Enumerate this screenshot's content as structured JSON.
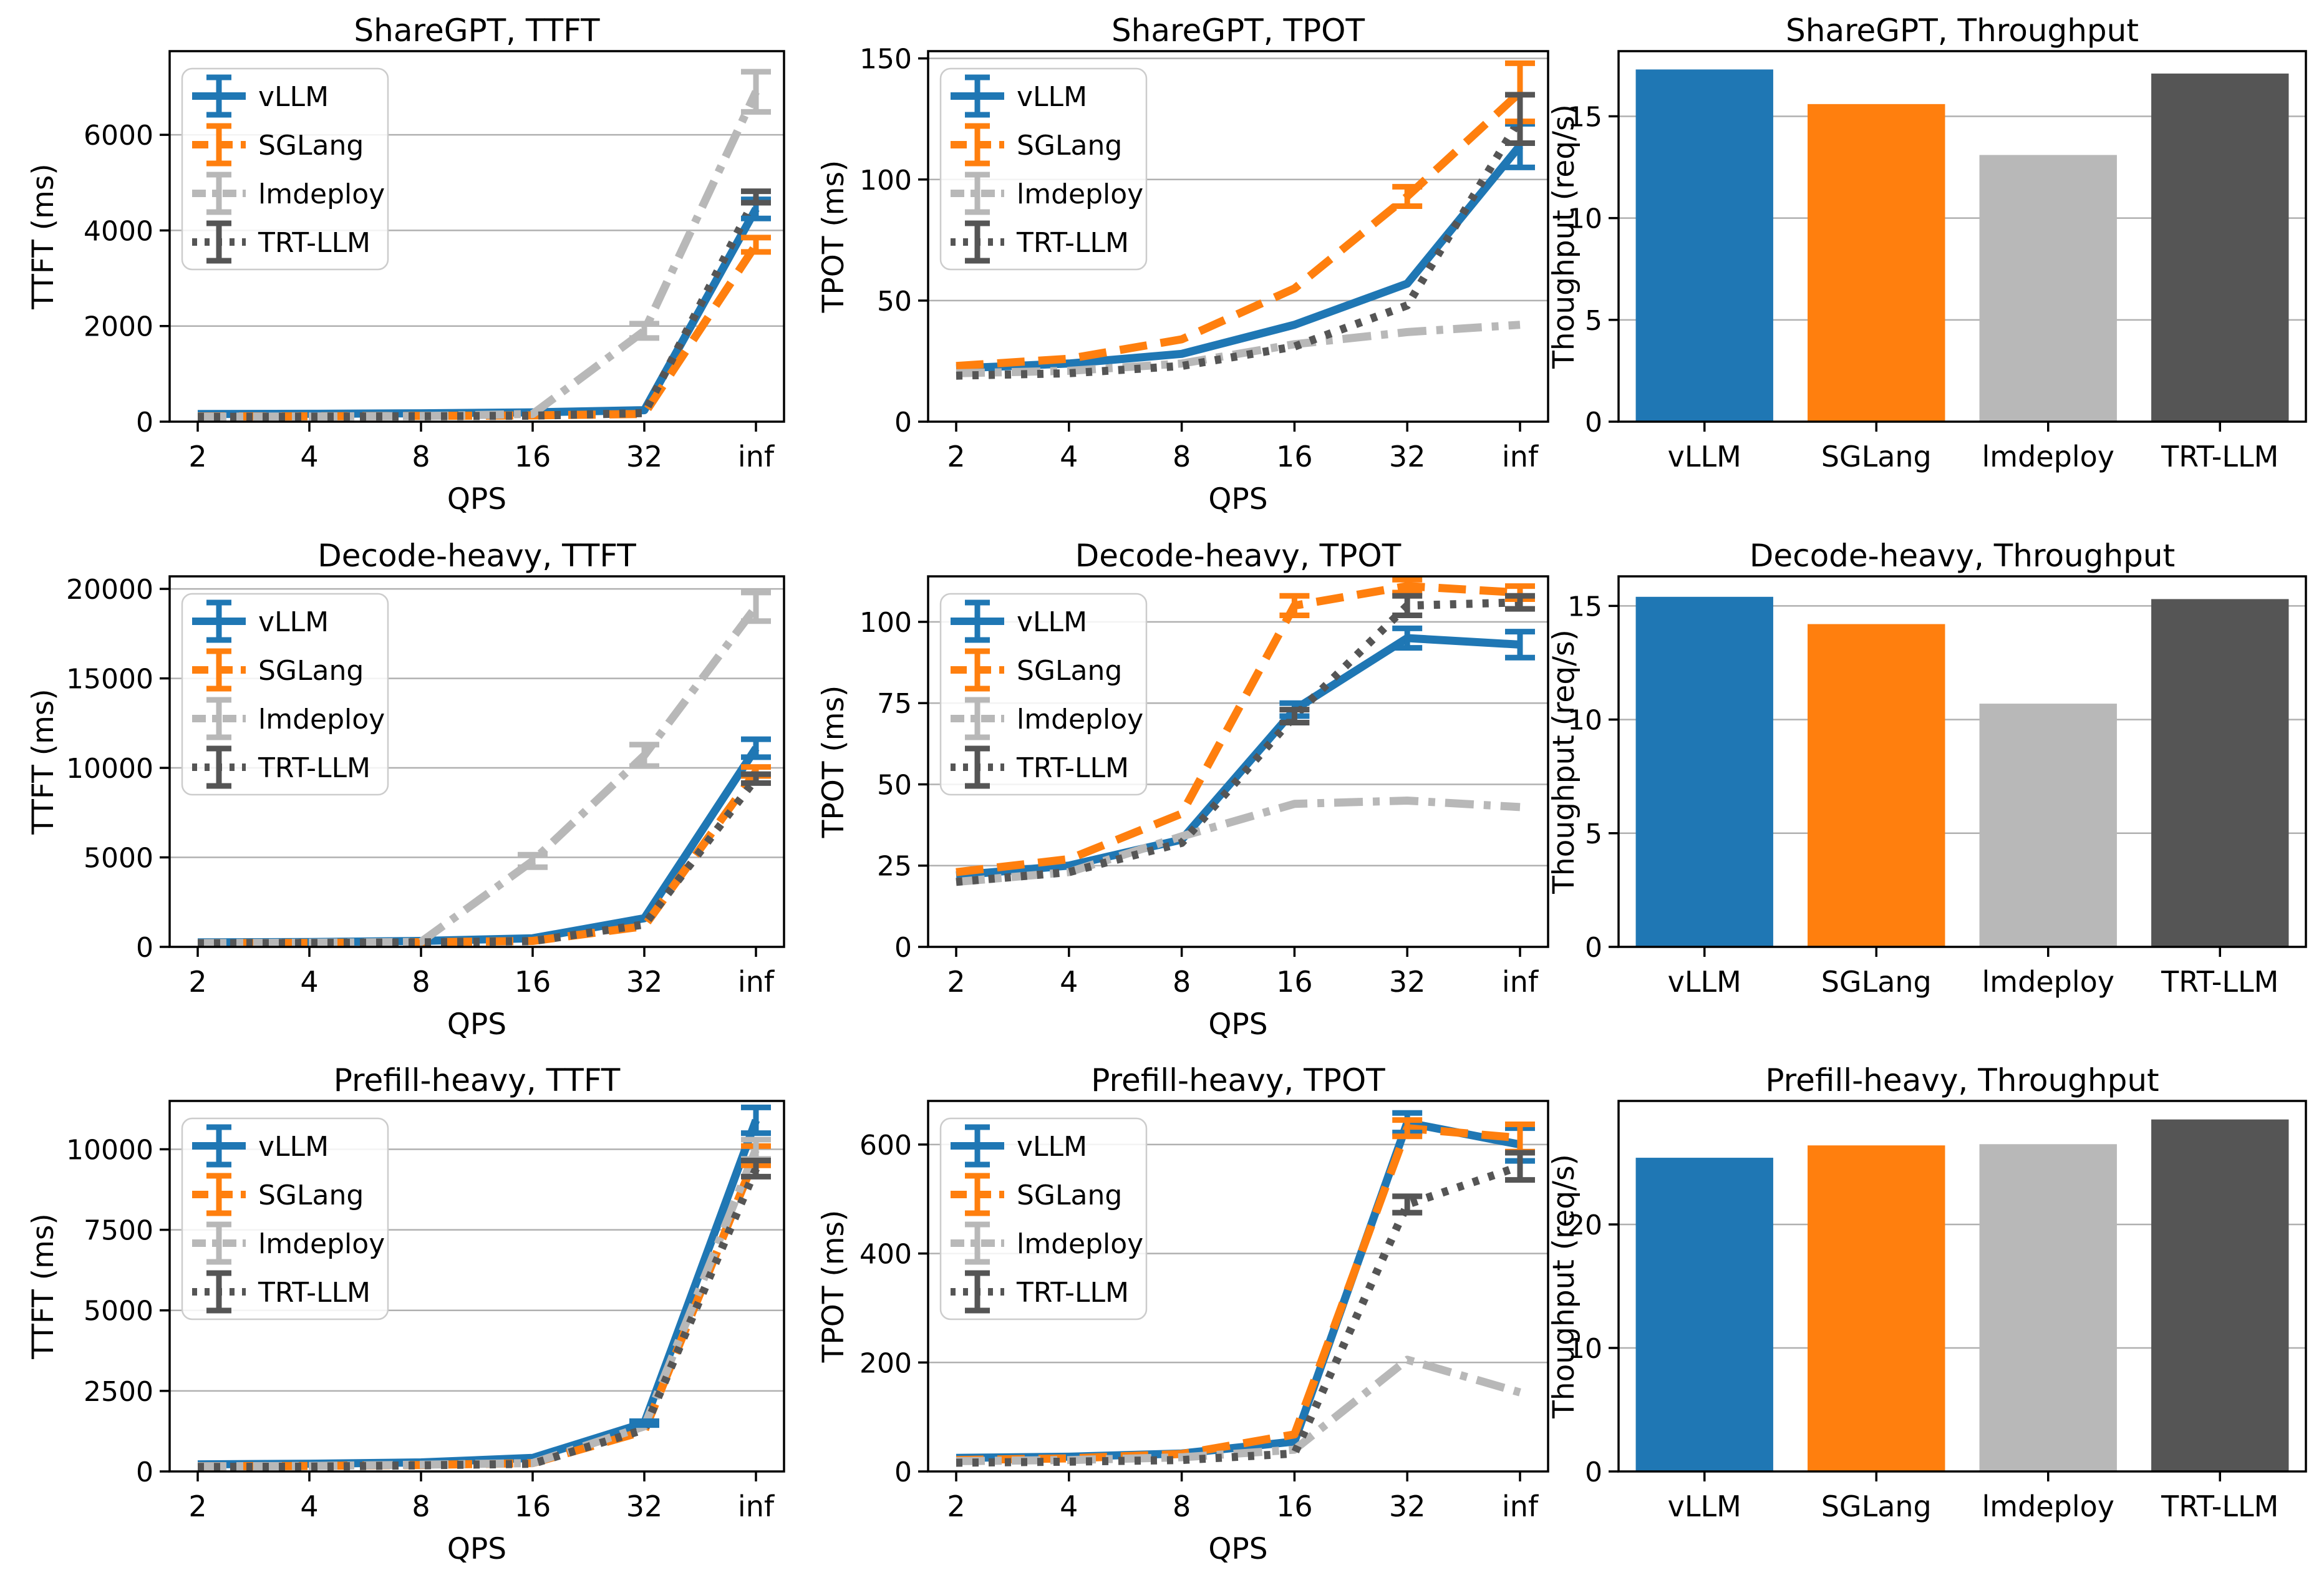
{
  "figure": {
    "background": "#ffffff",
    "grid_color": "#b0b0b0",
    "frame_color": "#000000",
    "legend_border_color": "#cccccc",
    "series_palette": {
      "vLLM": "#1f77b4",
      "SGLang": "#ff7f0e",
      "lmdeploy": "#b8b8b8",
      "TRT-LLM": "#555555"
    },
    "legend_entries": [
      "vLLM",
      "SGLang",
      "lmdeploy",
      "TRT-LLM"
    ]
  },
  "chart_data": [
    {
      "type": "line",
      "title": "ShareGPT, TTFT",
      "xlabel": "QPS",
      "ylabel": "TTFT (ms)",
      "categories": [
        "2",
        "4",
        "8",
        "16",
        "32",
        "inf"
      ],
      "yticks": [
        0,
        2000,
        4000,
        6000
      ],
      "ylim": [
        0,
        7750
      ],
      "legend_position": "upper left",
      "grid": true,
      "series": [
        {
          "name": "vLLM",
          "color": "#1f77b4",
          "style": "solid",
          "values": [
            160,
            165,
            175,
            195,
            240,
            4450
          ],
          "err": [
            0,
            0,
            0,
            0,
            0,
            200
          ]
        },
        {
          "name": "SGLang",
          "color": "#ff7f0e",
          "style": "dashed",
          "values": [
            110,
            112,
            120,
            130,
            160,
            3700
          ],
          "err": [
            0,
            0,
            0,
            0,
            0,
            150
          ]
        },
        {
          "name": "lmdeploy",
          "color": "#b8b8b8",
          "style": "dashdot",
          "values": [
            105,
            108,
            118,
            160,
            1900,
            6900
          ],
          "err": [
            0,
            0,
            0,
            0,
            150,
            420
          ]
        },
        {
          "name": "TRT-LLM",
          "color": "#555555",
          "style": "dotted",
          "values": [
            100,
            105,
            112,
            125,
            180,
            4700
          ],
          "err": [
            0,
            0,
            0,
            0,
            0,
            120
          ]
        }
      ]
    },
    {
      "type": "line",
      "title": "ShareGPT, TPOT",
      "xlabel": "QPS",
      "ylabel": "TPOT (ms)",
      "categories": [
        "2",
        "4",
        "8",
        "16",
        "32",
        "inf"
      ],
      "yticks": [
        0,
        50,
        100,
        150
      ],
      "ylim": [
        0,
        153
      ],
      "legend_position": "upper left",
      "grid": true,
      "series": [
        {
          "name": "vLLM",
          "color": "#1f77b4",
          "style": "solid",
          "values": [
            22,
            24,
            28,
            40,
            57,
            114
          ],
          "err": [
            0,
            0,
            0,
            0,
            0,
            9
          ]
        },
        {
          "name": "SGLang",
          "color": "#ff7f0e",
          "style": "dashed",
          "values": [
            23,
            26,
            34,
            55,
            93,
            136
          ],
          "err": [
            0,
            0,
            0,
            0,
            4,
            12
          ]
        },
        {
          "name": "lmdeploy",
          "color": "#b8b8b8",
          "style": "dashdot",
          "values": [
            20,
            21,
            24,
            32,
            37,
            40
          ],
          "err": [
            0,
            0,
            0,
            0,
            0,
            0
          ]
        },
        {
          "name": "TRT-LLM",
          "color": "#555555",
          "style": "dotted",
          "values": [
            19,
            20,
            23,
            31,
            48,
            125
          ],
          "err": [
            0,
            0,
            0,
            0,
            0,
            10
          ]
        }
      ]
    },
    {
      "type": "bar",
      "title": "ShareGPT, Throughput",
      "xlabel": "",
      "ylabel": "Thoughput (req/s)",
      "categories": [
        "vLLM",
        "SGLang",
        "lmdeploy",
        "TRT-LLM"
      ],
      "values": [
        17.3,
        15.6,
        13.1,
        17.1
      ],
      "colors": [
        "#1f77b4",
        "#ff7f0e",
        "#b8b8b8",
        "#555555"
      ],
      "yticks": [
        0,
        5,
        10,
        15
      ],
      "ylim": [
        0,
        18.2
      ],
      "grid": true
    },
    {
      "type": "line",
      "title": "Decode-heavy, TTFT",
      "xlabel": "QPS",
      "ylabel": "TTFT (ms)",
      "categories": [
        "2",
        "4",
        "8",
        "16",
        "32",
        "inf"
      ],
      "yticks": [
        0,
        5000,
        10000,
        15000,
        20000
      ],
      "ylim": [
        0,
        20700
      ],
      "legend_position": "upper left",
      "grid": true,
      "series": [
        {
          "name": "vLLM",
          "color": "#1f77b4",
          "style": "solid",
          "values": [
            250,
            270,
            330,
            480,
            1600,
            11100
          ],
          "err": [
            0,
            0,
            0,
            0,
            0,
            500
          ]
        },
        {
          "name": "SGLang",
          "color": "#ff7f0e",
          "style": "dashed",
          "values": [
            210,
            220,
            260,
            330,
            1150,
            9800
          ],
          "err": [
            0,
            0,
            0,
            0,
            0,
            250
          ]
        },
        {
          "name": "lmdeploy",
          "color": "#b8b8b8",
          "style": "dashdot",
          "values": [
            210,
            230,
            280,
            4800,
            10700,
            19000
          ],
          "err": [
            0,
            0,
            0,
            350,
            600,
            800
          ]
        },
        {
          "name": "TRT-LLM",
          "color": "#555555",
          "style": "dotted",
          "values": [
            200,
            215,
            250,
            320,
            1250,
            9400
          ],
          "err": [
            0,
            0,
            0,
            0,
            0,
            250
          ]
        }
      ]
    },
    {
      "type": "line",
      "title": "Decode-heavy, TPOT",
      "xlabel": "QPS",
      "ylabel": "TPOT (ms)",
      "categories": [
        "2",
        "4",
        "8",
        "16",
        "32",
        "inf"
      ],
      "yticks": [
        0,
        25,
        50,
        75,
        100
      ],
      "ylim": [
        0,
        114
      ],
      "legend_position": "upper left",
      "grid": true,
      "series": [
        {
          "name": "vLLM",
          "color": "#1f77b4",
          "style": "solid",
          "values": [
            22,
            25,
            33,
            73,
            95,
            93
          ],
          "err": [
            0,
            0,
            0,
            2,
            3,
            4
          ]
        },
        {
          "name": "SGLang",
          "color": "#ff7f0e",
          "style": "dashed",
          "values": [
            23,
            27,
            41,
            105,
            111,
            109
          ],
          "err": [
            0,
            0,
            0,
            3,
            2,
            2
          ]
        },
        {
          "name": "lmdeploy",
          "color": "#b8b8b8",
          "style": "dashdot",
          "values": [
            20,
            23,
            34,
            44,
            45,
            43
          ],
          "err": [
            0,
            0,
            0,
            0,
            0,
            0
          ]
        },
        {
          "name": "TRT-LLM",
          "color": "#555555",
          "style": "dotted",
          "values": [
            20,
            23,
            32,
            71,
            105,
            106
          ],
          "err": [
            0,
            0,
            0,
            2,
            3,
            2
          ]
        }
      ]
    },
    {
      "type": "bar",
      "title": "Decode-heavy, Throughput",
      "xlabel": "",
      "ylabel": "Thoughput (req/s)",
      "categories": [
        "vLLM",
        "SGLang",
        "lmdeploy",
        "TRT-LLM"
      ],
      "values": [
        15.4,
        14.2,
        10.7,
        15.3
      ],
      "colors": [
        "#1f77b4",
        "#ff7f0e",
        "#b8b8b8",
        "#555555"
      ],
      "yticks": [
        0,
        5,
        10,
        15
      ],
      "ylim": [
        0,
        16.3
      ],
      "grid": true
    },
    {
      "type": "line",
      "title": "Prefill-heavy, TTFT",
      "xlabel": "QPS",
      "ylabel": "TTFT (ms)",
      "categories": [
        "2",
        "4",
        "8",
        "16",
        "32",
        "inf"
      ],
      "yticks": [
        0,
        2500,
        5000,
        7500,
        10000
      ],
      "ylim": [
        0,
        11500
      ],
      "legend_position": "upper left",
      "grid": true,
      "series": [
        {
          "name": "vLLM",
          "color": "#1f77b4",
          "style": "solid",
          "values": [
            220,
            240,
            280,
            420,
            1500,
            10900
          ],
          "err": [
            0,
            0,
            0,
            0,
            60,
            400
          ]
        },
        {
          "name": "SGLang",
          "color": "#ff7f0e",
          "style": "dashed",
          "values": [
            160,
            170,
            200,
            260,
            1250,
            9800
          ],
          "err": [
            0,
            0,
            0,
            0,
            0,
            300
          ]
        },
        {
          "name": "lmdeploy",
          "color": "#b8b8b8",
          "style": "dashdot",
          "values": [
            160,
            170,
            210,
            260,
            1400,
            10000
          ],
          "err": [
            0,
            0,
            0,
            0,
            0,
            300
          ]
        },
        {
          "name": "TRT-LLM",
          "color": "#555555",
          "style": "dotted",
          "values": [
            140,
            150,
            190,
            240,
            1300,
            9400
          ],
          "err": [
            0,
            0,
            0,
            0,
            0,
            250
          ]
        }
      ]
    },
    {
      "type": "line",
      "title": "Prefill-heavy, TPOT",
      "xlabel": "QPS",
      "ylabel": "TPOT (ms)",
      "categories": [
        "2",
        "4",
        "8",
        "16",
        "32",
        "inf"
      ],
      "yticks": [
        0,
        200,
        400,
        600
      ],
      "ylim": [
        0,
        680
      ],
      "legend_position": "upper left",
      "grid": true,
      "series": [
        {
          "name": "vLLM",
          "color": "#1f77b4",
          "style": "solid",
          "values": [
            25,
            27,
            33,
            55,
            640,
            600
          ],
          "err": [
            0,
            0,
            0,
            0,
            18,
            30
          ]
        },
        {
          "name": "SGLang",
          "color": "#ff7f0e",
          "style": "dashed",
          "values": [
            21,
            24,
            32,
            68,
            630,
            612
          ],
          "err": [
            0,
            0,
            0,
            0,
            15,
            25
          ]
        },
        {
          "name": "lmdeploy",
          "color": "#b8b8b8",
          "style": "dashdot",
          "values": [
            19,
            21,
            26,
            40,
            205,
            145
          ],
          "err": [
            0,
            0,
            0,
            0,
            0,
            0
          ]
        },
        {
          "name": "TRT-LLM",
          "color": "#555555",
          "style": "dotted",
          "values": [
            16,
            18,
            21,
            33,
            490,
            560
          ],
          "err": [
            0,
            0,
            0,
            0,
            15,
            25
          ]
        }
      ]
    },
    {
      "type": "bar",
      "title": "Prefill-heavy, Throughput",
      "xlabel": "",
      "ylabel": "Thoughput (req/s)",
      "categories": [
        "vLLM",
        "SGLang",
        "lmdeploy",
        "TRT-LLM"
      ],
      "values": [
        25.4,
        26.4,
        26.5,
        28.5
      ],
      "colors": [
        "#1f77b4",
        "#ff7f0e",
        "#b8b8b8",
        "#555555"
      ],
      "yticks": [
        0,
        10,
        20
      ],
      "ylim": [
        0,
        30
      ],
      "grid": true
    }
  ]
}
